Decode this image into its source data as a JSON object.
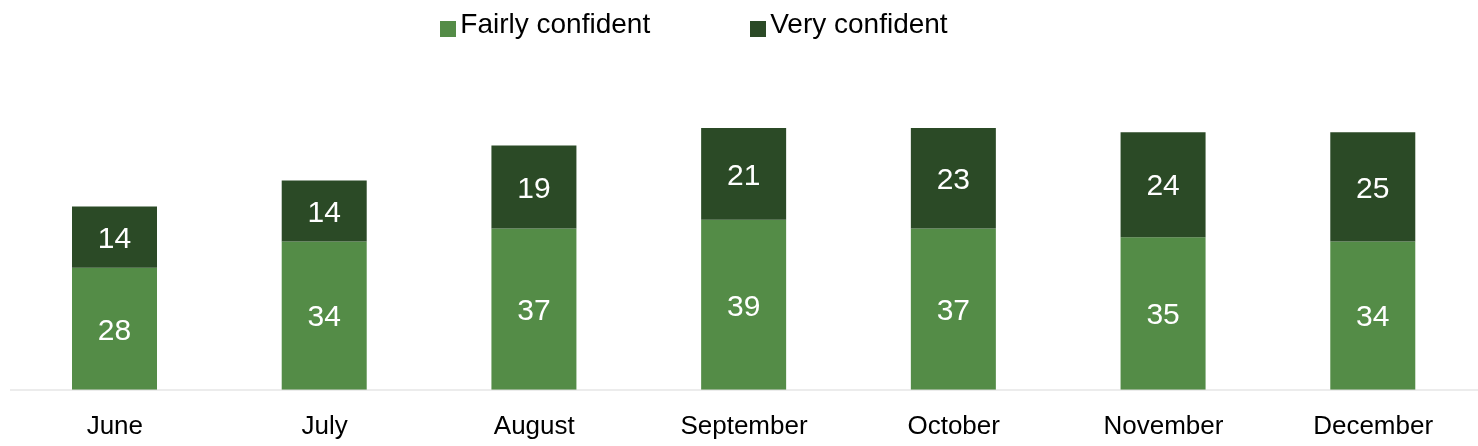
{
  "chart_data": {
    "type": "bar",
    "stacked": true,
    "categories": [
      "June",
      "July",
      "August",
      "September",
      "October",
      "November",
      "December"
    ],
    "series": [
      {
        "name": "Fairly confident",
        "color": "#548c47",
        "values": [
          28,
          34,
          37,
          39,
          37,
          35,
          34
        ]
      },
      {
        "name": "Very confident",
        "color": "#2b4a26",
        "values": [
          14,
          14,
          19,
          21,
          23,
          24,
          25
        ]
      }
    ],
    "data_labels": true,
    "legend": "top",
    "grid": false
  }
}
